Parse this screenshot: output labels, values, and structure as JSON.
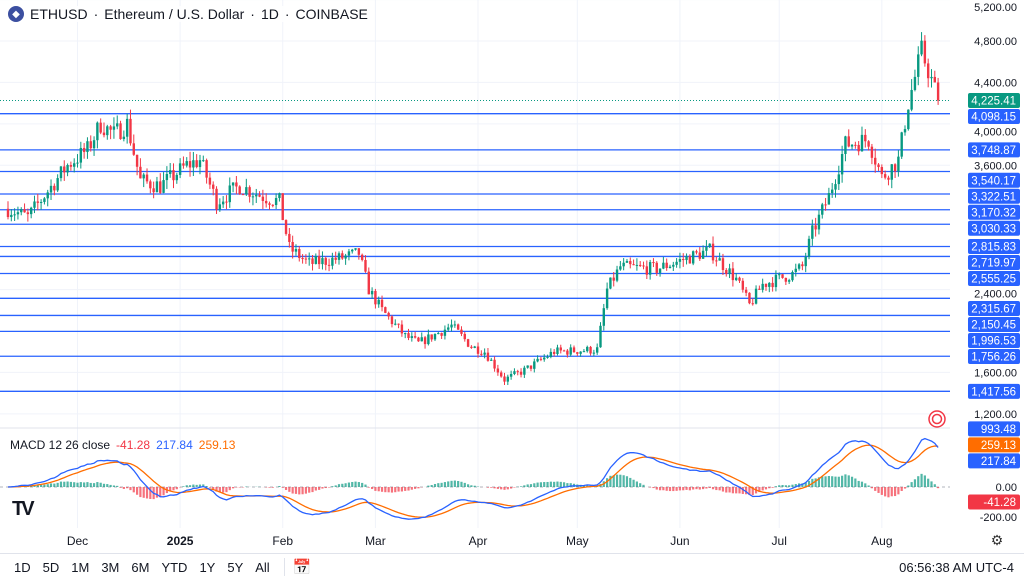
{
  "header": {
    "symbol": "ETHUSD",
    "name": "Ethereum / U.S. Dollar",
    "interval": "1D",
    "exchange": "COINBASE",
    "sep": "·"
  },
  "price_axis": {
    "ticks": [
      5200,
      4800,
      4400,
      4000,
      3600,
      2400,
      1600,
      1200
    ],
    "tick_labels": [
      "5,200.00",
      "4,800.00",
      "4,400.00",
      "4,000.00",
      "3,600.00",
      "2,400.00",
      "1,600.00",
      "1,200.00"
    ]
  },
  "current_price": {
    "value": 4225.41,
    "label": "4,225.41",
    "color": "#089981"
  },
  "levels": [
    {
      "value": 4098.15,
      "label": "4,098.15"
    },
    {
      "value": 3748.87,
      "label": "3,748.87"
    },
    {
      "value": 3540.17,
      "label": "3,540.17"
    },
    {
      "value": 3322.51,
      "label": "3,322.51"
    },
    {
      "value": 3170.32,
      "label": "3,170.32"
    },
    {
      "value": 3030.33,
      "label": "3,030.33"
    },
    {
      "value": 2815.83,
      "label": "2,815.83"
    },
    {
      "value": 2719.97,
      "label": "2,719.97"
    },
    {
      "value": 2555.25,
      "label": "2,555.25"
    },
    {
      "value": 2315.67,
      "label": "2,315.67"
    },
    {
      "value": 2150.45,
      "label": "2,150.45"
    },
    {
      "value": 1996.53,
      "label": "1,996.53"
    },
    {
      "value": 1756.26,
      "label": "1,756.26"
    },
    {
      "value": 1417.56,
      "label": "1,417.56"
    }
  ],
  "extra_label": {
    "label": "993.48"
  },
  "macd": {
    "title": "MACD 12 26 close",
    "hist": "-41.28",
    "macd": "217.84",
    "signal": "259.13",
    "axis": [
      "0.00",
      "-200.00"
    ],
    "colors": {
      "macd": "#2962ff",
      "signal": "#ff6d00",
      "up": "#089981",
      "down": "#f23645"
    }
  },
  "time_axis": [
    {
      "d": "2024-12-01",
      "label": "Dec"
    },
    {
      "d": "2025-01-01",
      "label": "2025"
    },
    {
      "d": "2025-02-01",
      "label": "Feb"
    },
    {
      "d": "2025-03-01",
      "label": "Mar"
    },
    {
      "d": "2025-04-01",
      "label": "Apr"
    },
    {
      "d": "2025-05-01",
      "label": "May"
    },
    {
      "d": "2025-06-01",
      "label": "Jun"
    },
    {
      "d": "2025-07-01",
      "label": "Jul"
    },
    {
      "d": "2025-08-01",
      "label": "Aug"
    }
  ],
  "chart_data": {
    "type": "candlestick",
    "start": "2024-11-10",
    "points": [
      [
        "2024-11-10",
        3180
      ],
      [
        "2024-11-16",
        3100
      ],
      [
        "2024-11-22",
        3350
      ],
      [
        "2024-11-28",
        3600
      ],
      [
        "2024-12-04",
        3750
      ],
      [
        "2024-12-08",
        4000
      ],
      [
        "2024-12-12",
        3900
      ],
      [
        "2024-12-16",
        4000
      ],
      [
        "2024-12-20",
        3450
      ],
      [
        "2024-12-26",
        3400
      ],
      [
        "2025-01-03",
        3600
      ],
      [
        "2025-01-07",
        3650
      ],
      [
        "2025-01-12",
        3250
      ],
      [
        "2025-01-19",
        3400
      ],
      [
        "2025-01-26",
        3300
      ],
      [
        "2025-01-31",
        3250
      ],
      [
        "2025-02-03",
        2800
      ],
      [
        "2025-02-09",
        2650
      ],
      [
        "2025-02-18",
        2700
      ],
      [
        "2025-02-24",
        2750
      ],
      [
        "2025-02-27",
        2400
      ],
      [
        "2025-03-03",
        2200
      ],
      [
        "2025-03-10",
        1950
      ],
      [
        "2025-03-14",
        1880
      ],
      [
        "2025-03-24",
        2050
      ],
      [
        "2025-03-30",
        1850
      ],
      [
        "2025-04-03",
        1800
      ],
      [
        "2025-04-09",
        1530
      ],
      [
        "2025-04-15",
        1620
      ],
      [
        "2025-04-24",
        1800
      ],
      [
        "2025-05-07",
        1820
      ],
      [
        "2025-05-10",
        2400
      ],
      [
        "2025-05-14",
        2620
      ],
      [
        "2025-05-25",
        2600
      ],
      [
        "2025-06-10",
        2780
      ],
      [
        "2025-06-18",
        2500
      ],
      [
        "2025-06-22",
        2250
      ],
      [
        "2025-06-26",
        2450
      ],
      [
        "2025-07-05",
        2550
      ],
      [
        "2025-07-08",
        2620
      ],
      [
        "2025-07-11",
        2950
      ],
      [
        "2025-07-16",
        3300
      ],
      [
        "2025-07-21",
        3800
      ],
      [
        "2025-07-28",
        3850
      ],
      [
        "2025-08-01",
        3480
      ],
      [
        "2025-08-06",
        3650
      ],
      [
        "2025-08-09",
        4200
      ],
      [
        "2025-08-13",
        4700
      ],
      [
        "2025-08-15",
        4520
      ],
      [
        "2025-08-18",
        4225
      ]
    ]
  },
  "bottom_bar": {
    "ranges": [
      "1D",
      "5D",
      "1M",
      "3M",
      "6M",
      "YTD",
      "1Y",
      "5Y",
      "All"
    ],
    "clock": "06:56:38 AM UTC-4"
  },
  "logo": "TV"
}
